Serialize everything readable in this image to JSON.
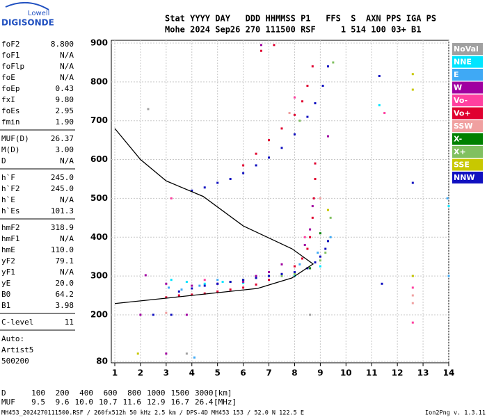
{
  "logo": {
    "top": "Lowell",
    "bottom": "DIGISONDE"
  },
  "header": {
    "labels": "Stat YYYY DAY   DDD HHMMSS P1   FFS  S  AXN PPS IGA PS",
    "values": "Mohe 2024 Sep26 270 111500 RSF     1 514 100 03+ B1"
  },
  "parameters": [
    [
      [
        "foF2",
        "8.800"
      ],
      [
        "foF1",
        "N/A"
      ],
      [
        "foFlp",
        "N/A"
      ],
      [
        "foE",
        "N/A"
      ],
      [
        "foEp",
        "0.43"
      ],
      [
        "fxI",
        "9.80"
      ],
      [
        "foEs",
        "2.95"
      ],
      [
        "fmin",
        "1.90"
      ]
    ],
    [
      [
        "MUF(D)",
        "26.37"
      ],
      [
        "M(D)",
        "3.00"
      ],
      [
        "D",
        "N/A"
      ]
    ],
    [
      [
        "h`F",
        "245.0"
      ],
      [
        "h`F2",
        "245.0"
      ],
      [
        "h`E",
        "N/A"
      ],
      [
        "h`Es",
        "101.3"
      ]
    ],
    [
      [
        "hmF2",
        "318.9"
      ],
      [
        "hmF1",
        "N/A"
      ],
      [
        "hmE",
        "110.0"
      ],
      [
        "yF2",
        "79.1"
      ],
      [
        "yF1",
        "N/A"
      ],
      [
        "yE",
        "20.0"
      ],
      [
        "B0",
        "64.2"
      ],
      [
        "B1",
        "3.98"
      ]
    ],
    [
      [
        "C-level",
        "11"
      ]
    ]
  ],
  "autoscaling": [
    "Auto:",
    "Artist5",
    "500200"
  ],
  "muf_table": [
    {
      "label": "D",
      "values": [
        "100",
        "200",
        "400",
        "600",
        "800",
        "1000",
        "1500",
        "3000"
      ],
      "unit": "[km]"
    },
    {
      "label": "MUF",
      "values": [
        "9.5",
        "9.6",
        "10.0",
        "10.7",
        "11.6",
        "12.9",
        "16.7",
        "26.4"
      ],
      "unit": "[MHz]"
    }
  ],
  "footer": {
    "file": "MH453_2024270111500.RSF / 260fx512h 50 kHz 2.5 km / DPS-4D MH453 153 / 52.0 N 122.5 E",
    "version": "Ion2Png v. 1.3.11"
  },
  "chart_data": {
    "type": "scatter",
    "xlim": [
      1,
      14
    ],
    "xticks": [
      1,
      2,
      3,
      4,
      5,
      6,
      7,
      8,
      9,
      10,
      11,
      12,
      13,
      14
    ],
    "ylim": [
      80,
      900
    ],
    "yticks": [
      80,
      200,
      300,
      400,
      500,
      600,
      700,
      800,
      900
    ],
    "grid": true,
    "legend": "right",
    "series": [
      {
        "name": "NoVal",
        "color": "#a0a0a0",
        "x": [
          2.3,
          3.8,
          8.6,
          12.6
        ],
        "y": [
          730,
          100,
          200,
          300
        ]
      },
      {
        "name": "NNE",
        "color": "#00e5ff",
        "x": [
          3.2,
          3.8,
          4.5,
          5.2,
          6,
          7,
          8,
          9,
          11.3,
          14
        ],
        "y": [
          290,
          285,
          280,
          285,
          282,
          290,
          300,
          325,
          740,
          480
        ]
      },
      {
        "name": "E",
        "color": "#3fa9f5",
        "x": [
          3.1,
          3.6,
          4.3,
          5,
          8.2,
          8.9,
          9.4,
          13.95,
          14,
          4.1
        ],
        "y": [
          270,
          265,
          275,
          290,
          330,
          360,
          400,
          500,
          300,
          90
        ]
      },
      {
        "name": "W",
        "color": "#a000a0",
        "x": [
          2.2,
          3,
          4,
          5,
          6,
          6.5,
          7,
          7.5,
          8.4,
          8.6,
          8.7,
          2,
          3,
          3.8,
          6.7,
          9.3
        ],
        "y": [
          302,
          280,
          275,
          280,
          285,
          300,
          310,
          330,
          380,
          420,
          480,
          200,
          100,
          200,
          895,
          660
        ]
      },
      {
        "name": "Vo-",
        "color": "#ff40a0",
        "x": [
          12.6,
          12.6,
          3.2,
          4.5,
          8.4,
          8,
          11.5
        ],
        "y": [
          180,
          270,
          500,
          290,
          400,
          760,
          720
        ]
      },
      {
        "name": "Vo+",
        "color": "#e00030",
        "x": [
          3,
          3.5,
          4,
          4.5,
          5,
          5.5,
          6,
          6.5,
          7,
          7.5,
          8,
          8.3,
          8.5,
          8.6,
          8.7,
          8.75,
          8.8,
          8.8,
          6,
          6.5,
          7,
          7.5,
          8,
          8.3,
          8.5,
          8.7,
          6.7,
          7.2
        ],
        "y": [
          245,
          250,
          252,
          255,
          260,
          265,
          270,
          278,
          290,
          305,
          325,
          345,
          370,
          400,
          450,
          500,
          550,
          590,
          585,
          615,
          650,
          680,
          715,
          750,
          790,
          840,
          880,
          895
        ]
      },
      {
        "name": "SSW",
        "color": "#f0a0a0",
        "x": [
          12.6,
          12.6,
          3,
          7.8,
          9
        ],
        "y": [
          230,
          250,
          205,
          720,
          500
        ]
      },
      {
        "name": "X-",
        "color": "#008000",
        "x": [
          5.5,
          6,
          7.5,
          8.6,
          9
        ],
        "y": [
          285,
          290,
          300,
          320,
          410
        ]
      },
      {
        "name": "X+",
        "color": "#80c060",
        "x": [
          6.5,
          7.5,
          8,
          8.5,
          9,
          9.2,
          9.3,
          9.4,
          8.2,
          9.5
        ],
        "y": [
          295,
          300,
          305,
          320,
          340,
          360,
          390,
          450,
          700,
          850
        ]
      },
      {
        "name": "SSE",
        "color": "#c8c800",
        "x": [
          12.6,
          12.6,
          12.6,
          9.3,
          1.9
        ],
        "y": [
          820,
          780,
          300,
          470,
          100
        ]
      },
      {
        "name": "NNW",
        "color": "#1010c0",
        "x": [
          3.5,
          4,
          4.5,
          5,
          5.5,
          6,
          6.5,
          7,
          7.5,
          8,
          8.5,
          8.8,
          9,
          9.2,
          9.3,
          4,
          4.5,
          5,
          5.5,
          6,
          6.5,
          7,
          7.5,
          8,
          8.5,
          8.8,
          9.1,
          9.3,
          2.5,
          3.2,
          11.3,
          11.4,
          12.6
        ],
        "y": [
          260,
          268,
          275,
          280,
          285,
          290,
          295,
          300,
          305,
          310,
          320,
          335,
          350,
          370,
          390,
          520,
          528,
          540,
          550,
          565,
          585,
          605,
          630,
          665,
          710,
          745,
          790,
          840,
          200,
          200,
          815,
          280,
          540
        ]
      },
      {
        "kind": "line",
        "color": "#000000",
        "x": [
          1,
          2,
          3,
          4.44,
          6,
          7.9,
          8.72,
          7.9,
          6.56,
          3.3,
          1
        ],
        "y": [
          680,
          600,
          545,
          505,
          429,
          370,
          331,
          295,
          268,
          245,
          229
        ]
      }
    ]
  }
}
